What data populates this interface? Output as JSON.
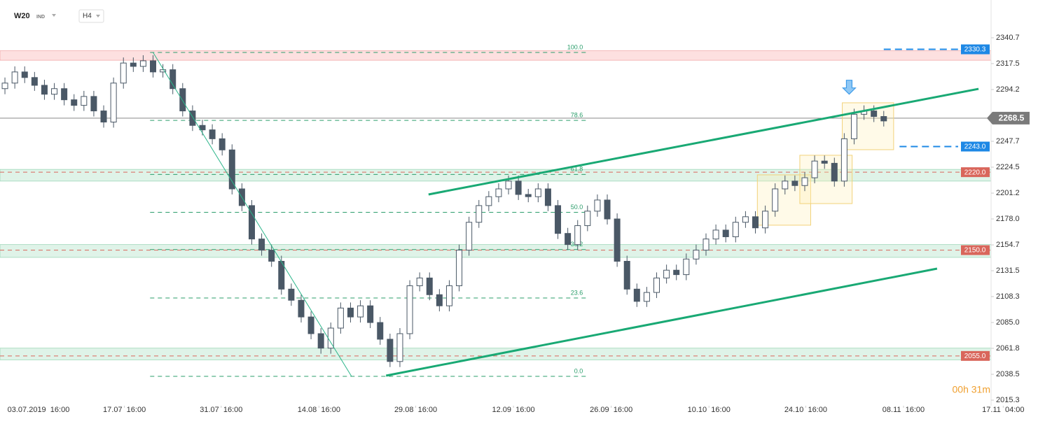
{
  "chart_data": {
    "type": "candlestick",
    "symbol": "W20",
    "market": "IND",
    "interval": "H4",
    "timer": "00h 31m",
    "up_color": "#ffffff",
    "down_color": "#4a5866",
    "outline_color": "#4a5866",
    "xlim": [
      0,
      102
    ],
    "ylim": [
      2010.3,
      2374.6
    ],
    "yticks": [
      2015.3,
      2038.5,
      2061.8,
      {
        "value": 2085.0,
        "label": "2085.0"
      },
      2108.3,
      2131.5,
      2154.7,
      {
        "value": 2178.0,
        "label": "2178.0"
      },
      2201.2,
      2224.5,
      2247.7,
      2294.2,
      2317.5,
      2340.7
    ],
    "xticks": [
      {
        "value": 3.9,
        "label": "03.07.2019  16:00"
      },
      {
        "value": 12.6,
        "label": "17.07  16:00"
      },
      {
        "value": 22.4,
        "label": "31.07  16:00"
      },
      {
        "value": 32.3,
        "label": "14.08  16:00"
      },
      {
        "value": 42.1,
        "label": "29.08  16:00"
      },
      {
        "value": 52.0,
        "label": "12.09  16:00"
      },
      {
        "value": 61.9,
        "label": "26.09  16:00"
      },
      {
        "value": 71.8,
        "label": "10.10  16:00"
      },
      {
        "value": 81.6,
        "label": "24.10  16:00"
      },
      {
        "value": 91.5,
        "label": "08.11  16:00"
      },
      {
        "value": 101.6,
        "label": "17.11  04:00"
      }
    ],
    "open": [
      2295,
      2300,
      2310,
      2305,
      2298,
      2290,
      2295,
      2285,
      2280,
      2288,
      2275,
      2265,
      2300,
      2318,
      2315,
      2320,
      2310,
      2312,
      2295,
      2275,
      2262,
      2258,
      2250,
      2240,
      2205,
      2190,
      2160,
      2150,
      2140,
      2115,
      2105,
      2090,
      2075,
      2062,
      2080,
      2098,
      2090,
      2100,
      2085,
      2070,
      2050,
      2075,
      2118,
      2125,
      2110,
      2100,
      2118,
      2150,
      2175,
      2190,
      2198,
      2205,
      2212,
      2200,
      2198,
      2205,
      2190,
      2165,
      2155,
      2172,
      2185,
      2195,
      2178,
      2140,
      2115,
      2104,
      2112,
      2125,
      2132,
      2128,
      2142,
      2150,
      2160,
      2168,
      2162,
      2175,
      2180,
      2170,
      2185,
      2205,
      2212,
      2208,
      2215,
      2230,
      2228,
      2212,
      2250,
      2272,
      2275,
      2270
    ],
    "high": [
      2305,
      2315,
      2315,
      2310,
      2303,
      2300,
      2300,
      2290,
      2293,
      2293,
      2280,
      2305,
      2323,
      2323,
      2325,
      2325,
      2317,
      2317,
      2300,
      2280,
      2267,
      2263,
      2255,
      2245,
      2210,
      2195,
      2165,
      2155,
      2145,
      2120,
      2110,
      2095,
      2080,
      2085,
      2103,
      2103,
      2105,
      2105,
      2090,
      2075,
      2080,
      2123,
      2130,
      2130,
      2115,
      2123,
      2155,
      2180,
      2195,
      2203,
      2210,
      2217,
      2217,
      2205,
      2210,
      2210,
      2195,
      2170,
      2177,
      2190,
      2200,
      2200,
      2183,
      2145,
      2120,
      2117,
      2130,
      2137,
      2137,
      2147,
      2155,
      2165,
      2173,
      2173,
      2180,
      2185,
      2185,
      2190,
      2210,
      2217,
      2217,
      2220,
      2235,
      2235,
      2233,
      2255,
      2277,
      2280,
      2280,
      2275
    ],
    "low": [
      2290,
      2295,
      2300,
      2293,
      2285,
      2285,
      2280,
      2275,
      2275,
      2270,
      2260,
      2260,
      2295,
      2310,
      2310,
      2305,
      2305,
      2290,
      2270,
      2257,
      2253,
      2245,
      2235,
      2200,
      2185,
      2155,
      2145,
      2135,
      2110,
      2100,
      2085,
      2070,
      2057,
      2057,
      2075,
      2085,
      2085,
      2080,
      2065,
      2045,
      2045,
      2070,
      2113,
      2105,
      2095,
      2095,
      2113,
      2145,
      2170,
      2185,
      2193,
      2200,
      2195,
      2193,
      2193,
      2185,
      2160,
      2150,
      2150,
      2167,
      2180,
      2173,
      2135,
      2110,
      2099,
      2099,
      2107,
      2120,
      2123,
      2123,
      2137,
      2145,
      2155,
      2157,
      2157,
      2170,
      2165,
      2165,
      2180,
      2200,
      2203,
      2203,
      2210,
      2223,
      2207,
      2207,
      2245,
      2267,
      2265,
      2261
    ],
    "close": [
      2300,
      2310,
      2305,
      2298,
      2290,
      2295,
      2285,
      2280,
      2288,
      2275,
      2265,
      2300,
      2318,
      2315,
      2320,
      2310,
      2312,
      2295,
      2275,
      2262,
      2258,
      2250,
      2240,
      2205,
      2190,
      2160,
      2150,
      2140,
      2115,
      2105,
      2090,
      2075,
      2062,
      2080,
      2098,
      2090,
      2100,
      2085,
      2070,
      2050,
      2075,
      2118,
      2125,
      2110,
      2100,
      2118,
      2150,
      2175,
      2190,
      2198,
      2205,
      2212,
      2200,
      2198,
      2205,
      2190,
      2165,
      2155,
      2172,
      2185,
      2195,
      2178,
      2140,
      2115,
      2104,
      2112,
      2125,
      2132,
      2128,
      2142,
      2150,
      2160,
      2168,
      2162,
      2175,
      2180,
      2170,
      2185,
      2205,
      2212,
      2208,
      2215,
      2230,
      2228,
      2212,
      2250,
      2272,
      2275,
      2270,
      2266
    ],
    "zones": [
      {
        "low": 2320.5,
        "high": 2329.0,
        "color": "#fde0e0"
      },
      {
        "low": 2212.0,
        "high": 2222.5,
        "color": "#dff3e8"
      },
      {
        "low": 2143.5,
        "high": 2155.0,
        "color": "#dff3e8"
      },
      {
        "low": 2051.5,
        "high": 2062.0,
        "color": "#dff3e8"
      }
    ],
    "fib": {
      "from": 15.2,
      "to": 59.6,
      "color": "#2a9d6a",
      "levels": [
        {
          "label": "100.0",
          "price": 2327.5
        },
        {
          "label": "78.6",
          "price": 2266.5
        },
        {
          "label": "61.8",
          "price": 2218.0
        },
        {
          "label": "50.0",
          "price": 2184.0
        },
        {
          "label": "38.2",
          "price": 2150.5
        },
        {
          "label": "23.6",
          "price": 2107.0
        },
        {
          "label": "0.0",
          "price": 2036.7
        }
      ]
    },
    "trendlines": [
      {
        "x": [
          43.4,
          99.1
        ],
        "price": [
          2200.0,
          2294.8
        ],
        "color": "#19a974",
        "width": 3
      },
      {
        "x": [
          39.1,
          94.9
        ],
        "price": [
          2037.3,
          2133.4
        ],
        "color": "#19a974",
        "width": 3
      },
      {
        "x": [
          15.5,
          35.6
        ],
        "price": [
          2327.5,
          2036.7
        ],
        "color": "#2bb58a",
        "width": 1
      }
    ],
    "boxes": [
      {
        "x": [
          76.7,
          82.1
        ],
        "price": [
          2217.6,
          2172.4
        ]
      },
      {
        "x": [
          81.0,
          86.3
        ],
        "price": [
          2235.2,
          2191.8
        ]
      },
      {
        "x": [
          85.3,
          90.5
        ],
        "price": [
          2282.3,
          2240.2
        ]
      }
    ],
    "arrow": {
      "x": 86.0,
      "price": 2290.0,
      "color": "#3d9be9"
    },
    "current_price": {
      "value": 2268.5,
      "label": "2268.5"
    },
    "price_tags": [
      {
        "price": 2330.3,
        "color": "#1e88e5",
        "dash_from": 89.5
      },
      {
        "price": {
          "value": 2243.0,
          "label": "2243.0"
        },
        "color": "#1e88e5",
        "dash_from": 91.1
      },
      {
        "price": {
          "value": 2220.0,
          "label": "2220.0"
        },
        "color": "#d9665b",
        "dash_from": 0
      },
      {
        "price": {
          "value": 2150.0,
          "label": "2150.0"
        },
        "color": "#d9665b",
        "dash_from": 0
      },
      {
        "price": {
          "value": 2055.0,
          "label": "2055.0"
        },
        "color": "#d9665b",
        "dash_from": 0
      }
    ]
  }
}
